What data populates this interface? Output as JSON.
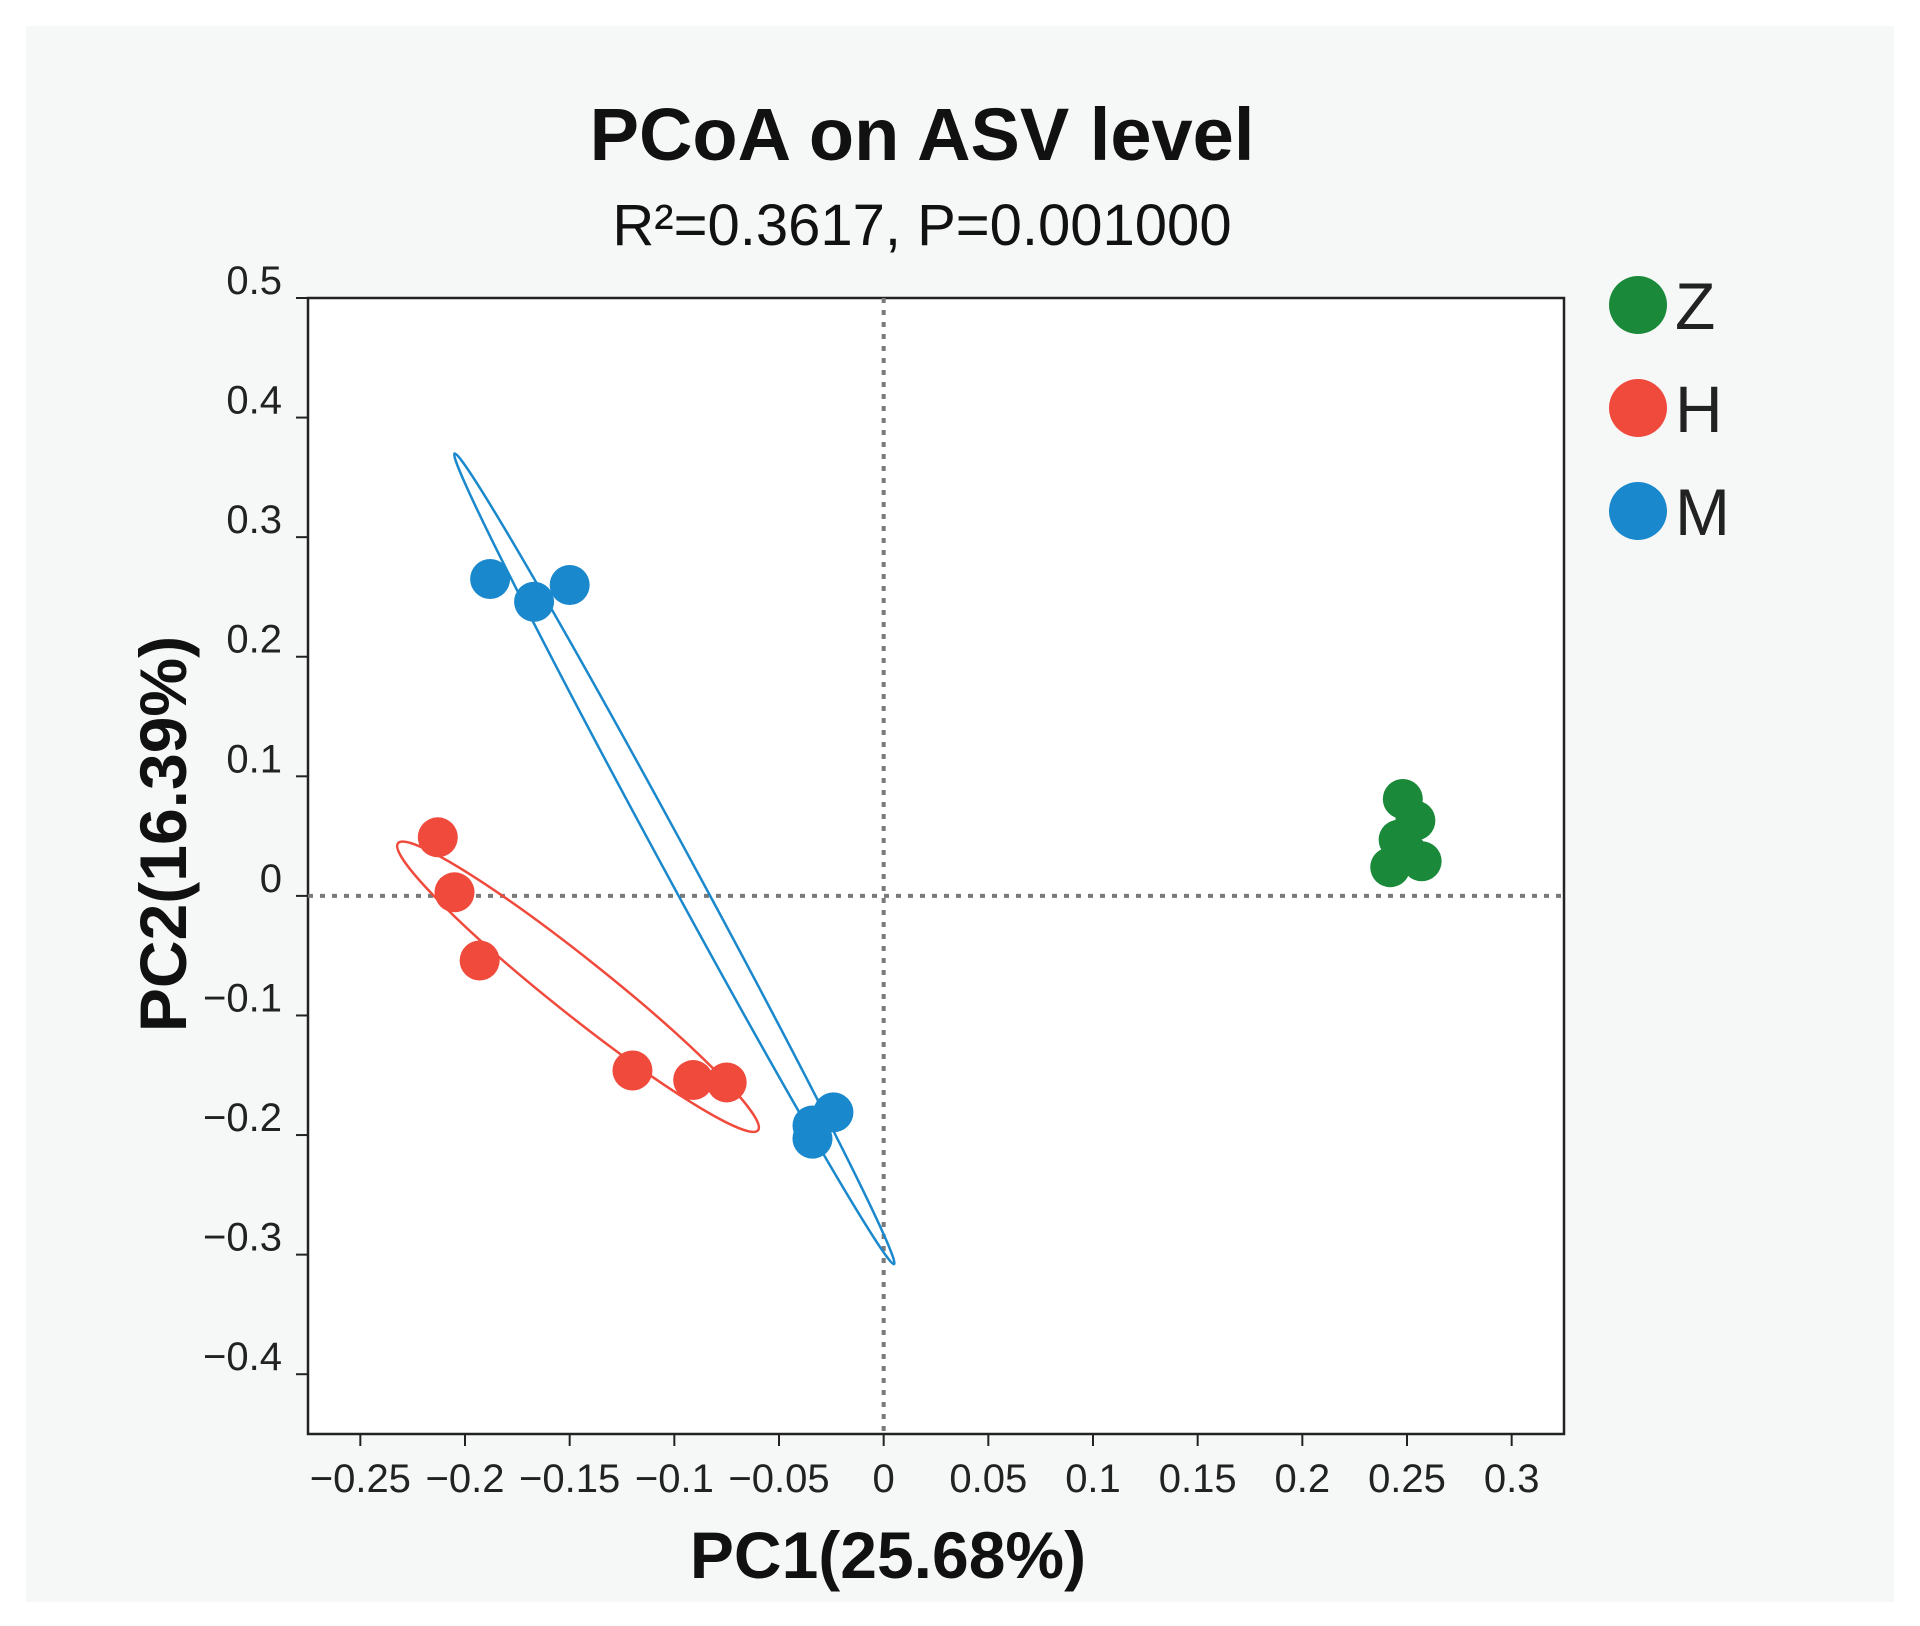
{
  "chart_data": {
    "type": "scatter",
    "title": "PCoA on ASV level",
    "subtitle": "R²=0.3617, P=0.001000",
    "xlabel": "PC1(25.68%)",
    "ylabel": "PC2(16.39%)",
    "xlim": [
      -0.275,
      0.325
    ],
    "ylim": [
      -0.45,
      0.5
    ],
    "xticks": [
      -0.25,
      -0.2,
      -0.15,
      -0.1,
      -0.05,
      0,
      0.05,
      0.1,
      0.15,
      0.2,
      0.25,
      0.3
    ],
    "xtick_labels": [
      "−0.25",
      "−0.2",
      "−0.15",
      "−0.1",
      "−0.05",
      "0",
      "0.05",
      "0.1",
      "0.15",
      "0.2",
      "0.25",
      "0.3"
    ],
    "yticks": [
      0.5,
      0.4,
      0.3,
      0.2,
      0.1,
      0,
      -0.1,
      -0.2,
      -0.3,
      -0.4
    ],
    "ytick_labels": [
      "0.5",
      "0.4",
      "0.3",
      "0.2",
      "0.1",
      "0",
      "−0.1",
      "−0.2",
      "−0.3",
      "−0.4"
    ],
    "reference_lines": {
      "x": 0,
      "y": 0,
      "style": "dotted"
    },
    "legend_position": "top-right outside",
    "series": [
      {
        "name": "Z",
        "color": "#1a8a3a",
        "points": [
          {
            "x": 0.248,
            "y": 0.081
          },
          {
            "x": 0.254,
            "y": 0.063
          },
          {
            "x": 0.246,
            "y": 0.047
          },
          {
            "x": 0.25,
            "y": 0.036
          },
          {
            "x": 0.257,
            "y": 0.029
          },
          {
            "x": 0.242,
            "y": 0.024
          }
        ],
        "ellipse": null
      },
      {
        "name": "H",
        "color": "#f04a3c",
        "points": [
          {
            "x": -0.213,
            "y": 0.049
          },
          {
            "x": -0.205,
            "y": 0.003
          },
          {
            "x": -0.193,
            "y": -0.054
          },
          {
            "x": -0.12,
            "y": -0.146
          },
          {
            "x": -0.091,
            "y": -0.154
          },
          {
            "x": -0.075,
            "y": -0.156
          }
        ],
        "ellipse": {
          "cx": -0.146,
          "cy": -0.076,
          "end": [
            -0.232,
            0.044
          ],
          "other": [
            -0.155,
            -0.059
          ]
        }
      },
      {
        "name": "M",
        "color": "#1a88cc",
        "points": [
          {
            "x": -0.188,
            "y": 0.265
          },
          {
            "x": -0.167,
            "y": 0.246
          },
          {
            "x": -0.15,
            "y": 0.26
          },
          {
            "x": -0.034,
            "y": -0.192
          },
          {
            "x": -0.024,
            "y": -0.181
          },
          {
            "x": -0.034,
            "y": -0.203
          }
        ],
        "ellipse": {
          "cx": -0.1,
          "cy": 0.031,
          "end": [
            -0.205,
            0.37
          ],
          "other": [
            -0.094,
            0.036
          ]
        }
      }
    ]
  }
}
